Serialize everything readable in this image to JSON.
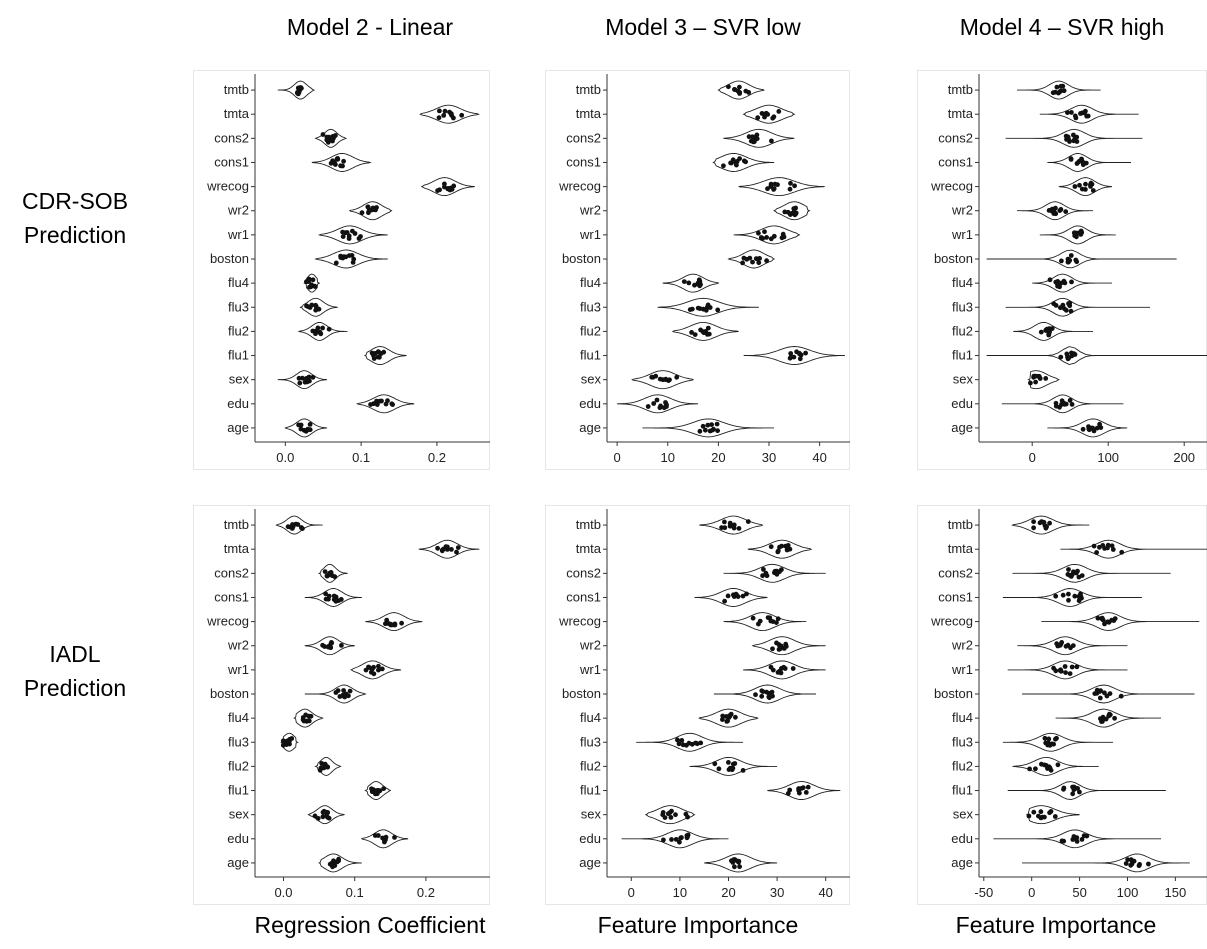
{
  "column_titles": [
    "Model 2 - Linear",
    "Model 3 – SVR low",
    "Model 4 – SVR high"
  ],
  "row_titles": [
    [
      "CDR-SOB",
      "Prediction"
    ],
    [
      "IADL",
      "Prediction"
    ]
  ],
  "x_titles": [
    "Regression Coefficient",
    "Feature Importance",
    "Feature Importance"
  ],
  "chart_data": [
    {
      "type": "violin",
      "row": 0,
      "col": 0,
      "categories": [
        "tmtb",
        "tmta",
        "cons2",
        "cons1",
        "wrecog",
        "wr2",
        "wr1",
        "boston",
        "flu4",
        "flu3",
        "flu2",
        "flu1",
        "sex",
        "edu",
        "age"
      ],
      "xticks": [
        0.0,
        0.1,
        0.2
      ],
      "xtick_labels": [
        "0.0",
        "0.1",
        "0.2"
      ],
      "xlim": [
        -0.04,
        0.27
      ],
      "series": [
        {
          "center": 0.02,
          "min": -0.01,
          "max": 0.038,
          "spread": 0.008
        },
        {
          "center": 0.215,
          "min": 0.178,
          "max": 0.255,
          "spread": 0.016
        },
        {
          "center": 0.06,
          "min": 0.04,
          "max": 0.08,
          "spread": 0.008
        },
        {
          "center": 0.075,
          "min": 0.035,
          "max": 0.112,
          "spread": 0.014
        },
        {
          "center": 0.21,
          "min": 0.18,
          "max": 0.25,
          "spread": 0.014
        },
        {
          "center": 0.115,
          "min": 0.085,
          "max": 0.14,
          "spread": 0.012
        },
        {
          "center": 0.085,
          "min": 0.045,
          "max": 0.135,
          "spread": 0.016
        },
        {
          "center": 0.08,
          "min": 0.04,
          "max": 0.135,
          "spread": 0.016
        },
        {
          "center": 0.035,
          "min": 0.025,
          "max": 0.045,
          "spread": 0.006
        },
        {
          "center": 0.04,
          "min": 0.02,
          "max": 0.068,
          "spread": 0.01
        },
        {
          "center": 0.045,
          "min": 0.018,
          "max": 0.082,
          "spread": 0.01
        },
        {
          "center": 0.125,
          "min": 0.105,
          "max": 0.16,
          "spread": 0.012
        },
        {
          "center": 0.025,
          "min": -0.01,
          "max": 0.055,
          "spread": 0.01
        },
        {
          "center": 0.13,
          "min": 0.095,
          "max": 0.17,
          "spread": 0.014
        },
        {
          "center": 0.025,
          "min": 0.0,
          "max": 0.055,
          "spread": 0.01
        }
      ]
    },
    {
      "type": "violin",
      "row": 0,
      "col": 1,
      "categories": [
        "tmtb",
        "tmta",
        "cons2",
        "cons1",
        "wrecog",
        "wr2",
        "wr1",
        "boston",
        "flu4",
        "flu3",
        "flu2",
        "flu1",
        "sex",
        "edu",
        "age"
      ],
      "xticks": [
        0,
        10,
        20,
        30,
        40
      ],
      "xtick_labels": [
        "0",
        "10",
        "20",
        "30",
        "40"
      ],
      "xlim": [
        -2,
        46
      ],
      "series": [
        {
          "center": 24,
          "min": 20,
          "max": 29,
          "spread": 2
        },
        {
          "center": 30,
          "min": 25,
          "max": 35,
          "spread": 2.5
        },
        {
          "center": 28,
          "min": 21,
          "max": 35,
          "spread": 2.5
        },
        {
          "center": 23,
          "min": 19,
          "max": 31,
          "spread": 2.5
        },
        {
          "center": 32,
          "min": 24,
          "max": 41,
          "spread": 3
        },
        {
          "center": 35,
          "min": 31,
          "max": 38,
          "spread": 2
        },
        {
          "center": 31,
          "min": 23,
          "max": 36,
          "spread": 2.5
        },
        {
          "center": 27,
          "min": 22,
          "max": 31,
          "spread": 2
        },
        {
          "center": 15,
          "min": 9,
          "max": 20,
          "spread": 2
        },
        {
          "center": 17,
          "min": 8,
          "max": 28,
          "spread": 3
        },
        {
          "center": 17,
          "min": 11,
          "max": 24,
          "spread": 2.5
        },
        {
          "center": 35,
          "min": 25,
          "max": 45,
          "spread": 3
        },
        {
          "center": 9,
          "min": 3,
          "max": 15,
          "spread": 2.5
        },
        {
          "center": 8,
          "min": 0,
          "max": 16,
          "spread": 2.5
        },
        {
          "center": 18,
          "min": 5,
          "max": 31,
          "spread": 3
        }
      ]
    },
    {
      "type": "violin",
      "row": 0,
      "col": 2,
      "categories": [
        "tmtb",
        "tmta",
        "cons2",
        "cons1",
        "wrecog",
        "wr2",
        "wr1",
        "boston",
        "flu4",
        "flu3",
        "flu2",
        "flu1",
        "sex",
        "edu",
        "age"
      ],
      "xticks": [
        0,
        100,
        200
      ],
      "xtick_labels": [
        "0",
        "100",
        "200"
      ],
      "xlim": [
        -70,
        230
      ],
      "series": [
        {
          "center": 35,
          "min": -20,
          "max": 90,
          "spread": 12
        },
        {
          "center": 65,
          "min": 10,
          "max": 140,
          "spread": 14
        },
        {
          "center": 55,
          "min": -35,
          "max": 145,
          "spread": 14
        },
        {
          "center": 60,
          "min": 20,
          "max": 130,
          "spread": 12
        },
        {
          "center": 70,
          "min": 35,
          "max": 105,
          "spread": 12
        },
        {
          "center": 30,
          "min": -20,
          "max": 80,
          "spread": 12
        },
        {
          "center": 60,
          "min": 10,
          "max": 110,
          "spread": 12
        },
        {
          "center": 50,
          "min": -60,
          "max": 190,
          "spread": 12
        },
        {
          "center": 40,
          "min": 0,
          "max": 105,
          "spread": 12
        },
        {
          "center": 40,
          "min": -35,
          "max": 155,
          "spread": 12
        },
        {
          "center": 15,
          "min": -25,
          "max": 80,
          "spread": 12
        },
        {
          "center": 50,
          "min": -60,
          "max": 230,
          "spread": 10
        },
        {
          "center": 5,
          "min": -5,
          "max": 35,
          "spread": 14
        },
        {
          "center": 40,
          "min": -40,
          "max": 120,
          "spread": 12
        },
        {
          "center": 80,
          "min": 20,
          "max": 125,
          "spread": 14
        }
      ]
    },
    {
      "type": "violin",
      "row": 1,
      "col": 0,
      "categories": [
        "tmtb",
        "tmta",
        "cons2",
        "cons1",
        "wrecog",
        "wr2",
        "wr1",
        "boston",
        "flu4",
        "flu3",
        "flu2",
        "flu1",
        "sex",
        "edu",
        "age"
      ],
      "xticks": [
        0.0,
        0.1,
        0.2
      ],
      "xtick_labels": [
        "0.0",
        "0.1",
        "0.2"
      ],
      "xlim": [
        -0.04,
        0.29
      ],
      "series": [
        {
          "center": 0.015,
          "min": -0.01,
          "max": 0.055,
          "spread": 0.01
        },
        {
          "center": 0.23,
          "min": 0.19,
          "max": 0.275,
          "spread": 0.014
        },
        {
          "center": 0.065,
          "min": 0.05,
          "max": 0.09,
          "spread": 0.008
        },
        {
          "center": 0.07,
          "min": 0.03,
          "max": 0.11,
          "spread": 0.012
        },
        {
          "center": 0.155,
          "min": 0.115,
          "max": 0.195,
          "spread": 0.014
        },
        {
          "center": 0.065,
          "min": 0.03,
          "max": 0.1,
          "spread": 0.012
        },
        {
          "center": 0.125,
          "min": 0.095,
          "max": 0.165,
          "spread": 0.014
        },
        {
          "center": 0.085,
          "min": 0.03,
          "max": 0.115,
          "spread": 0.012
        },
        {
          "center": 0.03,
          "min": 0.015,
          "max": 0.055,
          "spread": 0.01
        },
        {
          "center": 0.008,
          "min": -0.003,
          "max": 0.02,
          "spread": 0.008
        },
        {
          "center": 0.06,
          "min": 0.045,
          "max": 0.08,
          "spread": 0.008
        },
        {
          "center": 0.13,
          "min": 0.115,
          "max": 0.15,
          "spread": 0.009
        },
        {
          "center": 0.058,
          "min": 0.035,
          "max": 0.085,
          "spread": 0.01
        },
        {
          "center": 0.14,
          "min": 0.11,
          "max": 0.175,
          "spread": 0.012
        },
        {
          "center": 0.07,
          "min": 0.05,
          "max": 0.11,
          "spread": 0.012
        }
      ]
    },
    {
      "type": "violin",
      "row": 1,
      "col": 1,
      "categories": [
        "tmtb",
        "tmta",
        "cons2",
        "cons1",
        "wrecog",
        "wr2",
        "wr1",
        "boston",
        "flu4",
        "flu3",
        "flu2",
        "flu1",
        "sex",
        "edu",
        "age"
      ],
      "xticks": [
        0,
        10,
        20,
        30,
        40
      ],
      "xtick_labels": [
        "0",
        "10",
        "20",
        "30",
        "40"
      ],
      "xlim": [
        -5,
        45
      ],
      "series": [
        {
          "center": 21,
          "min": 14,
          "max": 27,
          "spread": 2.5
        },
        {
          "center": 31,
          "min": 24,
          "max": 37,
          "spread": 2.5
        },
        {
          "center": 29,
          "min": 19,
          "max": 40,
          "spread": 2.5
        },
        {
          "center": 21,
          "min": 13,
          "max": 28,
          "spread": 2.5
        },
        {
          "center": 27,
          "min": 19,
          "max": 36,
          "spread": 2.5
        },
        {
          "center": 31,
          "min": 25,
          "max": 40,
          "spread": 2.5
        },
        {
          "center": 31,
          "min": 23,
          "max": 40,
          "spread": 2.5
        },
        {
          "center": 28,
          "min": 17,
          "max": 38,
          "spread": 2.5
        },
        {
          "center": 20,
          "min": 14,
          "max": 26,
          "spread": 2.5
        },
        {
          "center": 12,
          "min": 1,
          "max": 23,
          "spread": 2.5
        },
        {
          "center": 20,
          "min": 12,
          "max": 30,
          "spread": 2.5
        },
        {
          "center": 35,
          "min": 28,
          "max": 43,
          "spread": 2.5
        },
        {
          "center": 8,
          "min": 3,
          "max": 13,
          "spread": 2.5
        },
        {
          "center": 10,
          "min": -2,
          "max": 20,
          "spread": 2.5
        },
        {
          "center": 22,
          "min": 15,
          "max": 30,
          "spread": 2.5
        }
      ]
    },
    {
      "type": "violin",
      "row": 1,
      "col": 2,
      "categories": [
        "tmtb",
        "tmta",
        "cons2",
        "cons1",
        "wrecog",
        "wr2",
        "wr1",
        "boston",
        "flu4",
        "flu3",
        "flu2",
        "flu1",
        "sex",
        "edu",
        "age"
      ],
      "xticks": [
        -50,
        0,
        50,
        100,
        150
      ],
      "xtick_labels": [
        "-50",
        "0",
        "50",
        "100",
        "150"
      ],
      "xlim": [
        -55,
        183
      ],
      "series": [
        {
          "center": 10,
          "min": -20,
          "max": 60,
          "spread": 12
        },
        {
          "center": 80,
          "min": 30,
          "max": 185,
          "spread": 12
        },
        {
          "center": 45,
          "min": -20,
          "max": 145,
          "spread": 12
        },
        {
          "center": 40,
          "min": -30,
          "max": 115,
          "spread": 12
        },
        {
          "center": 80,
          "min": 10,
          "max": 175,
          "spread": 12
        },
        {
          "center": 35,
          "min": -15,
          "max": 100,
          "spread": 12
        },
        {
          "center": 35,
          "min": -25,
          "max": 100,
          "spread": 12
        },
        {
          "center": 75,
          "min": -10,
          "max": 170,
          "spread": 12
        },
        {
          "center": 75,
          "min": 25,
          "max": 135,
          "spread": 12
        },
        {
          "center": 20,
          "min": -30,
          "max": 85,
          "spread": 12
        },
        {
          "center": 15,
          "min": -20,
          "max": 70,
          "spread": 12
        },
        {
          "center": 40,
          "min": -25,
          "max": 140,
          "spread": 10
        },
        {
          "center": 10,
          "min": -5,
          "max": 50,
          "spread": 14
        },
        {
          "center": 45,
          "min": -40,
          "max": 135,
          "spread": 12
        },
        {
          "center": 110,
          "min": -10,
          "max": 165,
          "spread": 12
        }
      ]
    }
  ]
}
